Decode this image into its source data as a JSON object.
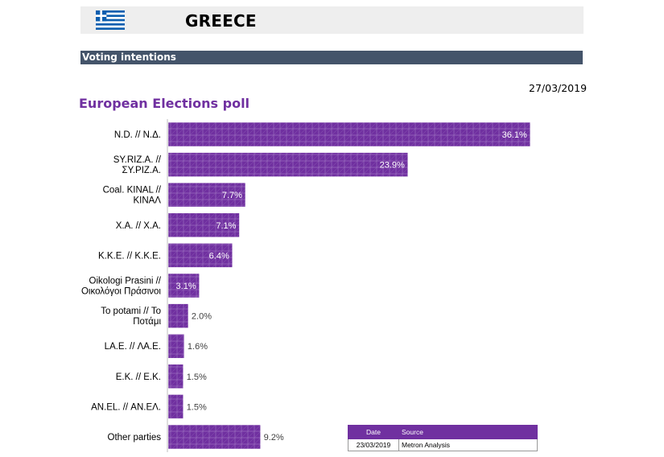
{
  "header": {
    "country": "GREECE",
    "flag_icon": "greece-flag-icon"
  },
  "section": {
    "title": "Voting intentions"
  },
  "date": "27/03/2019",
  "poll_title": "European Elections poll",
  "colors": {
    "bar": "#7030a0",
    "section_bar": "#44546a",
    "header_bg": "#eeeeee"
  },
  "chart_data": {
    "type": "bar",
    "orientation": "horizontal",
    "title": "European Elections poll",
    "categories": [
      "N.D. // Ν.Δ.",
      "SY.RIZ.A. // ΣΥ.ΡΙΖ.Α.",
      "Coal. KINAL // ΚΙΝΑΛ",
      "X.A. // Χ.Α.",
      "K.K.E. // Κ.Κ.Ε.",
      "Oikologi Prasini // Οικολόγοι Πράσινοι",
      "To potami // Το Ποτάμι",
      "LA.E. // ΛΑ.Ε.",
      "E.K. // Ε.Κ.",
      "AN.EL. // ΑΝ.ΕΛ.",
      "Other parties"
    ],
    "label_lines": [
      [
        "N.D. // Ν.Δ."
      ],
      [
        "SY.RIZ.A. //",
        "ΣΥ.ΡΙΖ.Α."
      ],
      [
        "Coal. KINAL //",
        "ΚΙΝΑΛ"
      ],
      [
        "X.A. // Χ.Α."
      ],
      [
        "K.K.E. // Κ.Κ.Ε."
      ],
      [
        "Oikologi Prasini //",
        "Οικολόγοι Πράσινοι"
      ],
      [
        "To potami // Το",
        "Ποτάμι"
      ],
      [
        "LA.E. // ΛΑ.Ε."
      ],
      [
        "E.K. // Ε.Κ."
      ],
      [
        "AN.EL. // ΑΝ.ΕΛ."
      ],
      [
        "Other parties"
      ]
    ],
    "values": [
      36.1,
      23.9,
      7.7,
      7.1,
      6.4,
      3.1,
      2.0,
      1.6,
      1.5,
      1.5,
      9.2
    ],
    "value_labels": [
      "36.1%",
      "23.9%",
      "7.7%",
      "7.1%",
      "6.4%",
      "3.1%",
      "2.0%",
      "1.6%",
      "1.5%",
      "1.5%",
      "9.2%"
    ],
    "legend": "none",
    "grid": false
  },
  "source_table": {
    "headers": [
      "Date",
      "Source"
    ],
    "rows": [
      [
        "23/03/2019",
        "Metron Analysis"
      ]
    ]
  }
}
